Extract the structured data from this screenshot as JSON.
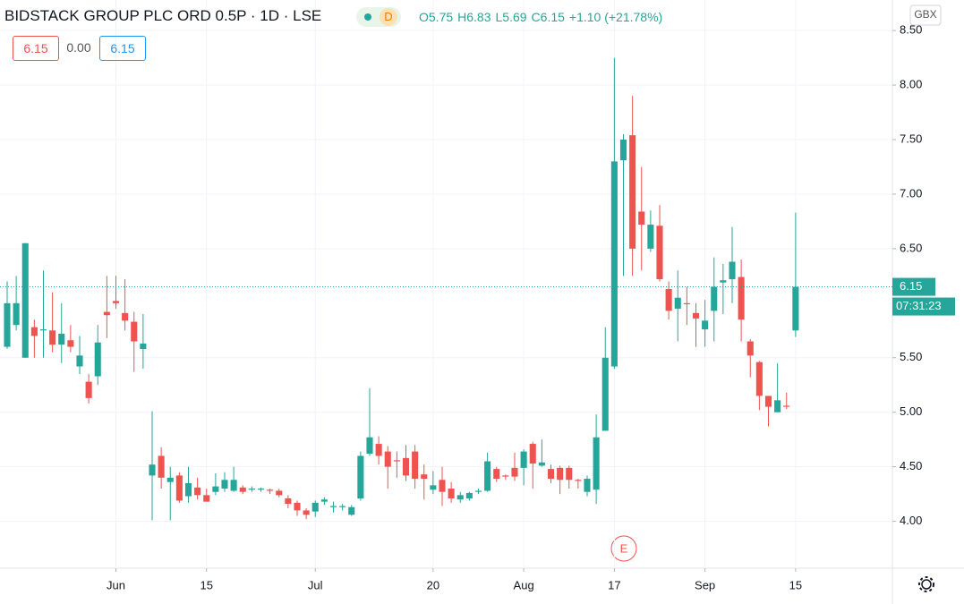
{
  "chart_data": {
    "type": "candlestick",
    "title": "BIDSTACK GROUP PLC ORD 0.5P · 1D · LSE",
    "interval_badge": "D",
    "ohlc_legend": [
      "O5.75",
      "H6.83",
      "L5.69",
      "C6.15",
      "+1.10 (+21.78%)"
    ],
    "price_boxes": [
      "6.15",
      "0.00",
      "6.15"
    ],
    "currency": "GBX",
    "countdown": "07:31:23",
    "event_marker": "E",
    "last_price": 6.15,
    "up_color": "#26a69a",
    "down_color": "#ef5350",
    "grid": true,
    "ylim": [
      3.57,
      8.78
    ],
    "yticks": [
      {
        "value": 8.5,
        "label": "8.50"
      },
      {
        "value": 8,
        "label": "8.00"
      },
      {
        "value": 7.5,
        "label": "7.50"
      },
      {
        "value": 7,
        "label": "7.00"
      },
      {
        "value": 6.5,
        "label": "6.50"
      },
      {
        "value": 5.5,
        "label": "5.50"
      },
      {
        "value": 5,
        "label": "5.00"
      },
      {
        "value": 4.5,
        "label": "4.50"
      },
      {
        "value": 4,
        "label": "4.00"
      }
    ],
    "xlim": [
      -0.79,
      97.68
    ],
    "xticks": [
      {
        "value": 12,
        "label": "Jun"
      },
      {
        "value": 22,
        "label": "15"
      },
      {
        "value": 34,
        "label": "Jul"
      },
      {
        "value": 47,
        "label": "20"
      },
      {
        "value": 57,
        "label": "Aug"
      },
      {
        "value": 67,
        "label": "17"
      },
      {
        "value": 77,
        "label": "Sep"
      },
      {
        "value": 87,
        "label": "15"
      }
    ],
    "open": [
      5.6,
      5.8,
      5.5,
      5.78,
      5.75,
      5.75,
      5.62,
      5.66,
      5.42,
      5.28,
      5.33,
      5.92,
      6.02,
      5.91,
      5.83,
      5.58,
      4.42,
      4.6,
      4.36,
      4.42,
      4.23,
      4.31,
      4.24,
      4.27,
      4.3,
      4.28,
      4.31,
      4.29,
      4.29,
      4.29,
      4.28,
      4.21,
      4.17,
      4.1,
      4.09,
      4.18,
      4.13,
      4.13,
      4.06,
      4.21,
      4.62,
      4.71,
      4.64,
      4.56,
      4.58,
      4.64,
      4.43,
      4.29,
      4.38,
      4.3,
      4.2,
      4.21,
      4.27,
      4.28,
      4.48,
      4.42,
      4.49,
      4.49,
      4.71,
      4.51,
      4.48,
      4.49,
      4.49,
      4.38,
      4.27,
      4.29,
      4.83,
      5.42,
      7.31,
      7.54,
      6.84,
      6.5,
      6.71,
      6.13,
      5.95,
      6.0,
      5.91,
      5.76,
      5.93,
      6.19,
      6.22,
      6.24,
      5.65,
      5.46,
      5.15,
      5.0,
      5.06,
      5.75
    ],
    "high": [
      6.2,
      6.25,
      6.55,
      5.85,
      6.3,
      6.1,
      6.0,
      5.8,
      5.7,
      5.35,
      5.8,
      6.25,
      6.25,
      6.22,
      5.92,
      5.9,
      5.01,
      4.68,
      4.5,
      4.45,
      4.5,
      4.4,
      4.3,
      4.44,
      4.45,
      4.5,
      4.33,
      4.32,
      4.31,
      4.3,
      4.3,
      4.24,
      4.19,
      4.12,
      4.19,
      4.22,
      4.18,
      4.16,
      4.15,
      4.64,
      5.22,
      4.78,
      4.69,
      4.64,
      4.7,
      4.7,
      4.52,
      4.46,
      4.5,
      4.36,
      4.27,
      4.27,
      4.3,
      4.63,
      4.5,
      4.43,
      4.63,
      4.66,
      4.73,
      4.75,
      4.52,
      4.51,
      4.51,
      4.39,
      4.42,
      4.98,
      5.78,
      8.25,
      7.55,
      7.9,
      7.25,
      6.85,
      6.9,
      6.2,
      6.3,
      6.15,
      6.0,
      6.03,
      6.42,
      6.36,
      6.7,
      6.4,
      5.67,
      5.47,
      5.15,
      5.45,
      5.18,
      6.83
    ],
    "low": [
      5.58,
      5.75,
      5.5,
      5.5,
      5.5,
      5.55,
      5.45,
      5.55,
      5.35,
      5.08,
      5.25,
      5.68,
      5.95,
      5.75,
      5.37,
      5.4,
      4.01,
      4.3,
      4.01,
      4.17,
      4.17,
      4.2,
      4.18,
      4.24,
      4.27,
      4.27,
      4.25,
      4.27,
      4.27,
      4.25,
      4.22,
      4.12,
      4.05,
      4.02,
      4.04,
      4.15,
      4.08,
      4.1,
      4.05,
      4.19,
      4.6,
      4.52,
      4.3,
      4.4,
      4.37,
      4.3,
      4.2,
      4.25,
      4.14,
      4.17,
      4.17,
      4.19,
      4.25,
      4.27,
      4.36,
      4.38,
      4.37,
      4.33,
      4.3,
      4.5,
      4.35,
      4.25,
      4.3,
      4.3,
      4.23,
      4.16,
      4.83,
      5.4,
      6.25,
      6.25,
      6.3,
      6.47,
      6.2,
      5.85,
      5.65,
      5.8,
      5.6,
      5.6,
      5.65,
      5.9,
      6.0,
      5.65,
      5.32,
      5.02,
      4.87,
      5.0,
      5.03,
      5.69
    ],
    "close": [
      6.0,
      6.0,
      6.55,
      5.7,
      5.76,
      5.62,
      5.72,
      5.6,
      5.52,
      5.13,
      5.64,
      5.89,
      6.0,
      5.84,
      5.65,
      5.63,
      4.52,
      4.4,
      4.4,
      4.19,
      4.35,
      4.24,
      4.18,
      4.32,
      4.38,
      4.38,
      4.27,
      4.3,
      4.3,
      4.28,
      4.24,
      4.16,
      4.1,
      4.06,
      4.17,
      4.2,
      4.14,
      4.14,
      4.13,
      4.6,
      4.77,
      4.6,
      4.5,
      4.55,
      4.42,
      4.39,
      4.39,
      4.33,
      4.27,
      4.21,
      4.24,
      4.26,
      4.28,
      4.55,
      4.39,
      4.41,
      4.41,
      4.64,
      4.53,
      4.54,
      4.39,
      4.38,
      4.38,
      4.37,
      4.39,
      4.77,
      5.5,
      7.3,
      7.5,
      6.5,
      6.72,
      6.72,
      6.22,
      5.93,
      6.05,
      5.99,
      5.86,
      5.84,
      6.15,
      6.21,
      6.38,
      5.85,
      5.52,
      5.15,
      5.05,
      5.11,
      5.05,
      6.15
    ]
  }
}
